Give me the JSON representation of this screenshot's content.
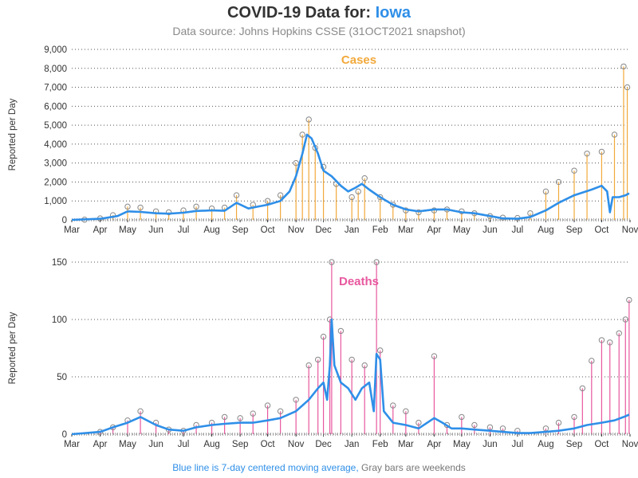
{
  "header": {
    "title_prefix": "COVID-19 Data for:",
    "location": "Iowa",
    "subtitle": "Data source: Johns Hopkins CSSE (31OCT2021 snapshot)"
  },
  "footer": {
    "blue_note": "Blue line is 7-day centered moving average,",
    "gray_note": "Gray bars are weekends"
  },
  "colors": {
    "cases": "#f2a93b",
    "deaths": "#e8589e",
    "moving_average": "#2f8fe8",
    "weekend": "#999999",
    "marker": "#888888"
  },
  "chart_data": [
    {
      "type": "bar",
      "title": "Cases",
      "ylabel": "Reported per Day",
      "xlabel": "",
      "ylim": [
        0,
        9000
      ],
      "yticks": [
        "0",
        "1,000",
        "2,000",
        "3,000",
        "4,000",
        "5,000",
        "6,000",
        "7,000",
        "8,000",
        "9,000"
      ],
      "x_ticks": [
        "Mar",
        "Apr",
        "May",
        "Jun",
        "Jul",
        "Aug",
        "Sep",
        "Oct",
        "Nov",
        "Dec",
        "Jan",
        "Feb",
        "Mar",
        "Apr",
        "May",
        "Jun",
        "Jul",
        "Aug",
        "Sep",
        "Oct",
        "Nov"
      ],
      "x_range": [
        "2020-03-01",
        "2021-11-01"
      ],
      "grid": "horizontal dotted",
      "series": [
        {
          "style": "daily bars with circle markers",
          "x": [
            "2020-03-15",
            "2020-04-01",
            "2020-04-15",
            "2020-05-01",
            "2020-05-15",
            "2020-06-01",
            "2020-06-15",
            "2020-07-01",
            "2020-07-15",
            "2020-08-01",
            "2020-08-15",
            "2020-08-28",
            "2020-09-15",
            "2020-10-01",
            "2020-10-15",
            "2020-11-01",
            "2020-11-08",
            "2020-11-15",
            "2020-11-22",
            "2020-12-01",
            "2020-12-15",
            "2021-01-01",
            "2021-01-08",
            "2021-01-15",
            "2021-02-01",
            "2021-02-15",
            "2021-03-01",
            "2021-03-15",
            "2021-04-01",
            "2021-04-15",
            "2021-05-01",
            "2021-05-15",
            "2021-06-01",
            "2021-06-15",
            "2021-07-01",
            "2021-07-15",
            "2021-08-01",
            "2021-08-15",
            "2021-09-01",
            "2021-09-15",
            "2021-10-01",
            "2021-10-15",
            "2021-10-25",
            "2021-10-29"
          ],
          "y": [
            10,
            80,
            250,
            700,
            650,
            450,
            400,
            500,
            700,
            600,
            650,
            1300,
            800,
            1000,
            1300,
            3000,
            4500,
            5300,
            3800,
            2800,
            1900,
            1200,
            1500,
            2200,
            1200,
            800,
            500,
            400,
            500,
            550,
            450,
            350,
            200,
            120,
            100,
            350,
            1500,
            2000,
            2600,
            3500,
            3600,
            4500,
            8100,
            7000
          ]
        },
        {
          "name": "7-day centered moving average",
          "style": "line",
          "x": [
            "2020-03-01",
            "2020-04-01",
            "2020-04-20",
            "2020-05-01",
            "2020-05-15",
            "2020-06-01",
            "2020-06-15",
            "2020-07-01",
            "2020-07-15",
            "2020-08-01",
            "2020-08-15",
            "2020-08-28",
            "2020-09-10",
            "2020-09-20",
            "2020-10-01",
            "2020-10-15",
            "2020-10-25",
            "2020-11-01",
            "2020-11-08",
            "2020-11-13",
            "2020-11-18",
            "2020-11-25",
            "2020-12-01",
            "2020-12-10",
            "2020-12-20",
            "2020-12-28",
            "2021-01-05",
            "2021-01-12",
            "2021-01-20",
            "2021-02-01",
            "2021-02-15",
            "2021-03-01",
            "2021-03-15",
            "2021-04-01",
            "2021-04-15",
            "2021-05-01",
            "2021-05-15",
            "2021-06-01",
            "2021-06-15",
            "2021-07-01",
            "2021-07-15",
            "2021-08-01",
            "2021-08-15",
            "2021-09-01",
            "2021-09-20",
            "2021-10-01",
            "2021-10-07",
            "2021-10-10",
            "2021-10-13",
            "2021-10-20",
            "2021-10-27",
            "2021-10-31"
          ],
          "y": [
            0,
            60,
            200,
            450,
            420,
            350,
            330,
            380,
            470,
            500,
            480,
            900,
            600,
            700,
            800,
            1000,
            1500,
            2300,
            3500,
            4500,
            4300,
            3500,
            2600,
            2300,
            1800,
            1500,
            1700,
            1900,
            1600,
            1200,
            800,
            550,
            450,
            550,
            550,
            400,
            350,
            200,
            80,
            60,
            150,
            500,
            900,
            1300,
            1600,
            1800,
            1500,
            400,
            1200,
            1200,
            1300,
            1400
          ]
        }
      ]
    },
    {
      "type": "bar",
      "title": "Deaths",
      "ylabel": "Reported per Day",
      "xlabel": "",
      "ylim": [
        0,
        150
      ],
      "yticks": [
        "0",
        "50",
        "100",
        "150"
      ],
      "x_ticks": [
        "Mar",
        "Apr",
        "May",
        "Jun",
        "Jul",
        "Aug",
        "Sep",
        "Oct",
        "Nov",
        "Dec",
        "Jan",
        "Feb",
        "Mar",
        "Apr",
        "May",
        "Jun",
        "Jul",
        "Aug",
        "Sep",
        "Oct",
        "Nov"
      ],
      "x_range": [
        "2020-03-01",
        "2021-11-01"
      ],
      "grid": "horizontal dotted",
      "series": [
        {
          "style": "daily bars with circle markers",
          "x": [
            "2020-04-01",
            "2020-04-15",
            "2020-05-01",
            "2020-05-15",
            "2020-06-01",
            "2020-06-15",
            "2020-07-01",
            "2020-07-15",
            "2020-08-01",
            "2020-08-15",
            "2020-09-01",
            "2020-09-15",
            "2020-10-01",
            "2020-10-15",
            "2020-11-01",
            "2020-11-15",
            "2020-11-25",
            "2020-12-01",
            "2020-12-08",
            "2020-12-10",
            "2020-12-20",
            "2021-01-01",
            "2021-01-15",
            "2021-01-28",
            "2021-02-01",
            "2021-02-15",
            "2021-03-01",
            "2021-03-15",
            "2021-04-01",
            "2021-04-15",
            "2021-05-01",
            "2021-05-15",
            "2021-06-01",
            "2021-06-15",
            "2021-07-01",
            "2021-08-01",
            "2021-08-15",
            "2021-09-01",
            "2021-09-10",
            "2021-09-20",
            "2021-10-01",
            "2021-10-10",
            "2021-10-20",
            "2021-10-27",
            "2021-10-31"
          ],
          "y": [
            2,
            6,
            12,
            20,
            10,
            4,
            3,
            8,
            10,
            15,
            14,
            18,
            25,
            20,
            30,
            60,
            65,
            85,
            100,
            150,
            90,
            65,
            60,
            150,
            73,
            25,
            20,
            10,
            68,
            8,
            15,
            8,
            6,
            5,
            3,
            5,
            10,
            15,
            40,
            64,
            82,
            80,
            88,
            100,
            117
          ]
        },
        {
          "name": "7-day centered moving average",
          "style": "line",
          "x": [
            "2020-03-01",
            "2020-04-01",
            "2020-04-15",
            "2020-05-01",
            "2020-05-15",
            "2020-06-01",
            "2020-06-15",
            "2020-07-01",
            "2020-07-15",
            "2020-08-01",
            "2020-08-15",
            "2020-09-01",
            "2020-09-15",
            "2020-10-01",
            "2020-10-15",
            "2020-11-01",
            "2020-11-15",
            "2020-11-25",
            "2020-12-01",
            "2020-12-05",
            "2020-12-08",
            "2020-12-10",
            "2020-12-13",
            "2020-12-20",
            "2020-12-28",
            "2021-01-05",
            "2021-01-12",
            "2021-01-20",
            "2021-01-25",
            "2021-01-28",
            "2021-02-01",
            "2021-02-05",
            "2021-02-15",
            "2021-03-01",
            "2021-03-15",
            "2021-04-01",
            "2021-04-10",
            "2021-04-20",
            "2021-05-01",
            "2021-05-15",
            "2021-06-01",
            "2021-06-15",
            "2021-07-01",
            "2021-07-15",
            "2021-08-01",
            "2021-08-15",
            "2021-09-01",
            "2021-09-15",
            "2021-10-01",
            "2021-10-15",
            "2021-10-25",
            "2021-10-31"
          ],
          "y": [
            0,
            2,
            6,
            10,
            15,
            8,
            4,
            3,
            6,
            8,
            9,
            10,
            10,
            12,
            14,
            20,
            30,
            40,
            45,
            30,
            60,
            100,
            60,
            45,
            40,
            30,
            40,
            45,
            20,
            70,
            65,
            20,
            10,
            8,
            5,
            14,
            10,
            5,
            5,
            4,
            3,
            2,
            1,
            1,
            2,
            3,
            5,
            8,
            10,
            12,
            15,
            17
          ]
        }
      ]
    }
  ]
}
